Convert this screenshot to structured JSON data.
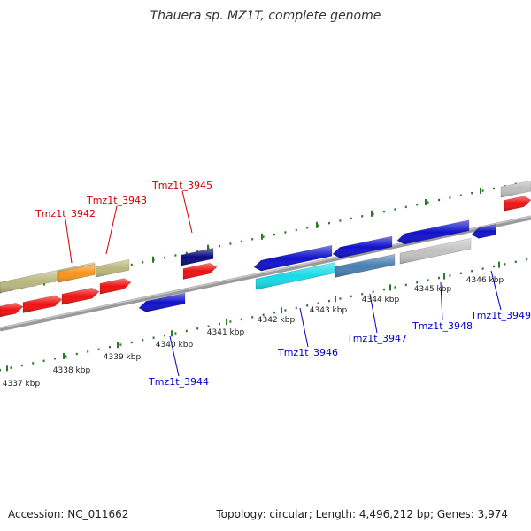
{
  "title": "Thauera sp. MZ1T, complete genome",
  "footer": {
    "accession": "Accession: NC_011662",
    "summary": "Topology: circular; Length: 4,496,212 bp; Genes: 3,974"
  },
  "colors": {
    "forward_label": "#cc0000",
    "reverse_label": "#0000cc",
    "tick": "#2a7a2a",
    "backbone": "#8a8a8a"
  },
  "scale_labels": [
    "4337 kbp",
    "4338 kbp",
    "4339 kbp",
    "4340 kbp",
    "4341 kbp",
    "4342 kbp",
    "4343 kbp",
    "4344 kbp",
    "4345 kbp",
    "4346 kbp"
  ],
  "gene_labels": {
    "forward": [
      "Tmz1t_3942",
      "Tmz1t_3943",
      "Tmz1t_3945"
    ],
    "reverse": [
      "Tmz1t_3944",
      "Tmz1t_3946",
      "Tmz1t_3947",
      "Tmz1t_3948",
      "Tmz1t_3949"
    ]
  }
}
